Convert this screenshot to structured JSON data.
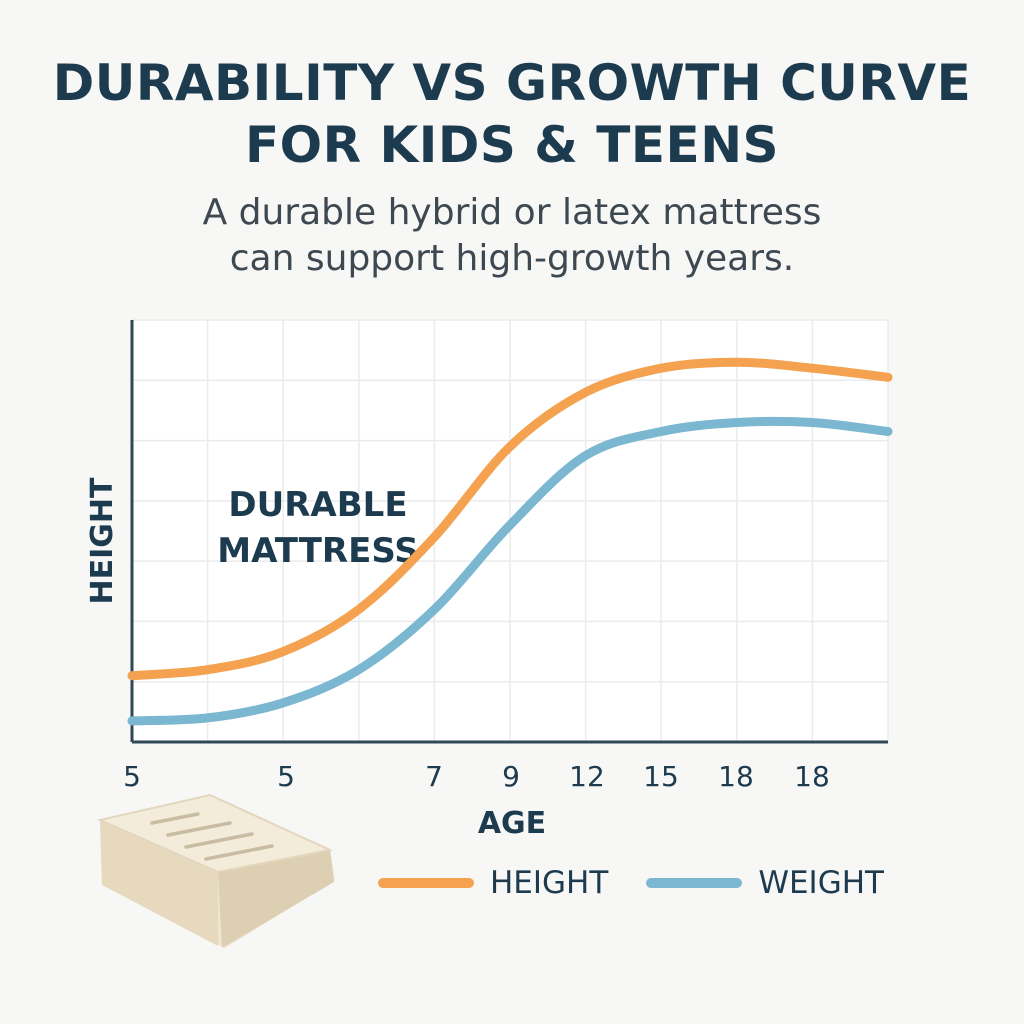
{
  "page": {
    "title_line1": "DURABILITY VS GROWTH CURVE",
    "title_line2": "FOR KIDS & TEENS",
    "subtitle_line1": "A durable hybrid or latex mattress",
    "subtitle_line2": "can support high-growth years.",
    "illustration_icon": "mattress-icon"
  },
  "chart_data": {
    "type": "line",
    "xlabel": "AGE",
    "ylabel": "HEIGHT",
    "x_tick_labels": [
      "5",
      "5",
      "7",
      "9",
      "12",
      "15",
      "18",
      "18"
    ],
    "x_range": [
      0,
      10
    ],
    "y_range": [
      0,
      7
    ],
    "grid": true,
    "annotation_line1": "DURABLE",
    "annotation_line2": "MATTRESS",
    "legend_position": "bottom-right",
    "series": [
      {
        "name": "HEIGHT",
        "color": "#f4a24f",
        "x": [
          0,
          1,
          2,
          3,
          4,
          5,
          6,
          7,
          8,
          9,
          10
        ],
        "y": [
          1.1,
          1.2,
          1.5,
          2.2,
          3.4,
          4.9,
          5.8,
          6.2,
          6.3,
          6.2,
          6.05
        ]
      },
      {
        "name": "WEIGHT",
        "color": "#7bb7d1",
        "x": [
          0,
          1,
          2,
          3,
          4,
          5,
          6,
          7,
          8,
          9,
          10
        ],
        "y": [
          0.35,
          0.4,
          0.65,
          1.2,
          2.2,
          3.6,
          4.75,
          5.15,
          5.3,
          5.3,
          5.15
        ]
      }
    ]
  }
}
